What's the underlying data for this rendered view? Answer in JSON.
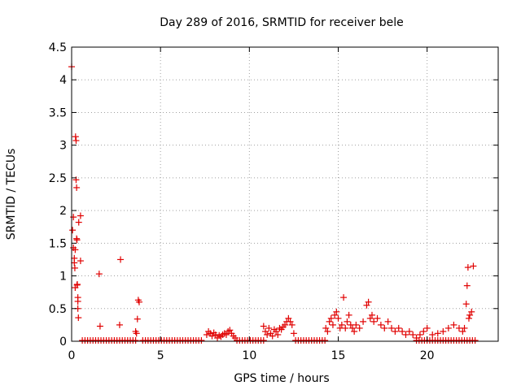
{
  "chart_data": {
    "type": "scatter",
    "title": "Day 289 of 2016, SRMTID for receiver bele",
    "xlabel": "GPS time / hours",
    "ylabel": "SRMTID / TECUs",
    "xlim": [
      0,
      24
    ],
    "ylim": [
      0,
      4.5
    ],
    "x_ticks": [
      0,
      5,
      10,
      15,
      20
    ],
    "x_tick_labels": [
      "0",
      "5",
      "10",
      "15",
      "20"
    ],
    "y_ticks": [
      0,
      0.5,
      1,
      1.5,
      2,
      2.5,
      3,
      3.5,
      4,
      4.5
    ],
    "y_tick_labels": [
      "0",
      "0.5",
      "1",
      "1.5",
      "2",
      "2.5",
      "3",
      "3.5",
      "4",
      "4.5"
    ],
    "grid": true,
    "marker": "+",
    "series_color": "#e00000",
    "series": [
      {
        "points": [
          [
            0.0,
            4.2
          ],
          [
            0.05,
            1.7
          ],
          [
            0.1,
            1.43
          ],
          [
            0.1,
            1.9
          ],
          [
            0.15,
            1.27
          ],
          [
            0.15,
            1.2
          ],
          [
            0.18,
            1.12
          ],
          [
            0.2,
            0.82
          ],
          [
            0.2,
            1.4
          ],
          [
            0.22,
            3.13
          ],
          [
            0.25,
            3.07
          ],
          [
            0.25,
            2.47
          ],
          [
            0.28,
            2.35
          ],
          [
            0.28,
            1.57
          ],
          [
            0.3,
            1.55
          ],
          [
            0.3,
            0.86
          ],
          [
            0.32,
            0.87
          ],
          [
            0.35,
            0.67
          ],
          [
            0.35,
            0.61
          ],
          [
            0.35,
            0.5
          ],
          [
            0.38,
            0.36
          ],
          [
            0.4,
            1.82
          ],
          [
            0.5,
            1.92
          ],
          [
            0.5,
            1.23
          ],
          [
            1.55,
            1.03
          ],
          [
            1.6,
            0.23
          ],
          [
            2.7,
            0.25
          ],
          [
            2.75,
            1.25
          ],
          [
            3.6,
            0.15
          ],
          [
            3.65,
            0.12
          ],
          [
            3.7,
            0.34
          ],
          [
            3.75,
            0.63
          ],
          [
            3.8,
            0.6
          ],
          [
            7.6,
            0.1
          ],
          [
            7.7,
            0.15
          ],
          [
            7.8,
            0.12
          ],
          [
            7.9,
            0.08
          ],
          [
            8.0,
            0.13
          ],
          [
            8.1,
            0.1
          ],
          [
            8.2,
            0.05
          ],
          [
            8.3,
            0.09
          ],
          [
            8.4,
            0.07
          ],
          [
            8.5,
            0.1
          ],
          [
            8.6,
            0.12
          ],
          [
            8.7,
            0.1
          ],
          [
            8.8,
            0.15
          ],
          [
            8.9,
            0.17
          ],
          [
            9.0,
            0.12
          ],
          [
            9.1,
            0.08
          ],
          [
            9.2,
            0.05
          ],
          [
            10.8,
            0.23
          ],
          [
            10.9,
            0.15
          ],
          [
            11.0,
            0.1
          ],
          [
            11.1,
            0.2
          ],
          [
            11.2,
            0.12
          ],
          [
            11.3,
            0.08
          ],
          [
            11.4,
            0.18
          ],
          [
            11.5,
            0.15
          ],
          [
            11.6,
            0.1
          ],
          [
            11.7,
            0.2
          ],
          [
            11.8,
            0.18
          ],
          [
            11.9,
            0.22
          ],
          [
            12.0,
            0.25
          ],
          [
            12.1,
            0.3
          ],
          [
            12.2,
            0.35
          ],
          [
            12.3,
            0.3
          ],
          [
            12.4,
            0.25
          ],
          [
            12.5,
            0.12
          ],
          [
            14.3,
            0.2
          ],
          [
            14.4,
            0.15
          ],
          [
            14.5,
            0.3
          ],
          [
            14.6,
            0.35
          ],
          [
            14.7,
            0.25
          ],
          [
            14.8,
            0.4
          ],
          [
            14.9,
            0.45
          ],
          [
            15.0,
            0.35
          ],
          [
            15.1,
            0.2
          ],
          [
            15.2,
            0.25
          ],
          [
            15.3,
            0.67
          ],
          [
            15.4,
            0.2
          ],
          [
            15.5,
            0.3
          ],
          [
            15.6,
            0.4
          ],
          [
            15.7,
            0.25
          ],
          [
            15.8,
            0.2
          ],
          [
            15.9,
            0.15
          ],
          [
            16.0,
            0.25
          ],
          [
            16.2,
            0.2
          ],
          [
            16.4,
            0.3
          ],
          [
            16.6,
            0.55
          ],
          [
            16.7,
            0.6
          ],
          [
            16.8,
            0.35
          ],
          [
            16.9,
            0.4
          ],
          [
            17.0,
            0.3
          ],
          [
            17.2,
            0.35
          ],
          [
            17.4,
            0.25
          ],
          [
            17.6,
            0.2
          ],
          [
            17.8,
            0.3
          ],
          [
            18.0,
            0.2
          ],
          [
            18.2,
            0.15
          ],
          [
            18.4,
            0.2
          ],
          [
            18.6,
            0.15
          ],
          [
            18.8,
            0.1
          ],
          [
            19.0,
            0.15
          ],
          [
            19.2,
            0.1
          ],
          [
            19.4,
            0.05
          ],
          [
            19.6,
            0.1
          ],
          [
            19.8,
            0.15
          ],
          [
            20.0,
            0.2
          ],
          [
            20.3,
            0.1
          ],
          [
            20.6,
            0.12
          ],
          [
            20.9,
            0.15
          ],
          [
            21.2,
            0.2
          ],
          [
            21.5,
            0.25
          ],
          [
            21.8,
            0.2
          ],
          [
            22.0,
            0.15
          ],
          [
            22.1,
            0.2
          ],
          [
            22.2,
            0.57
          ],
          [
            22.25,
            0.85
          ],
          [
            22.3,
            1.13
          ],
          [
            22.35,
            0.35
          ],
          [
            22.4,
            0.4
          ],
          [
            22.5,
            0.45
          ],
          [
            22.6,
            1.15
          ]
        ]
      }
    ],
    "baseline_segments": [
      [
        0.6,
        3.6
      ],
      [
        4.0,
        7.3
      ],
      [
        9.3,
        10.8
      ],
      [
        12.6,
        14.3
      ],
      [
        19.4,
        22.7
      ]
    ]
  }
}
